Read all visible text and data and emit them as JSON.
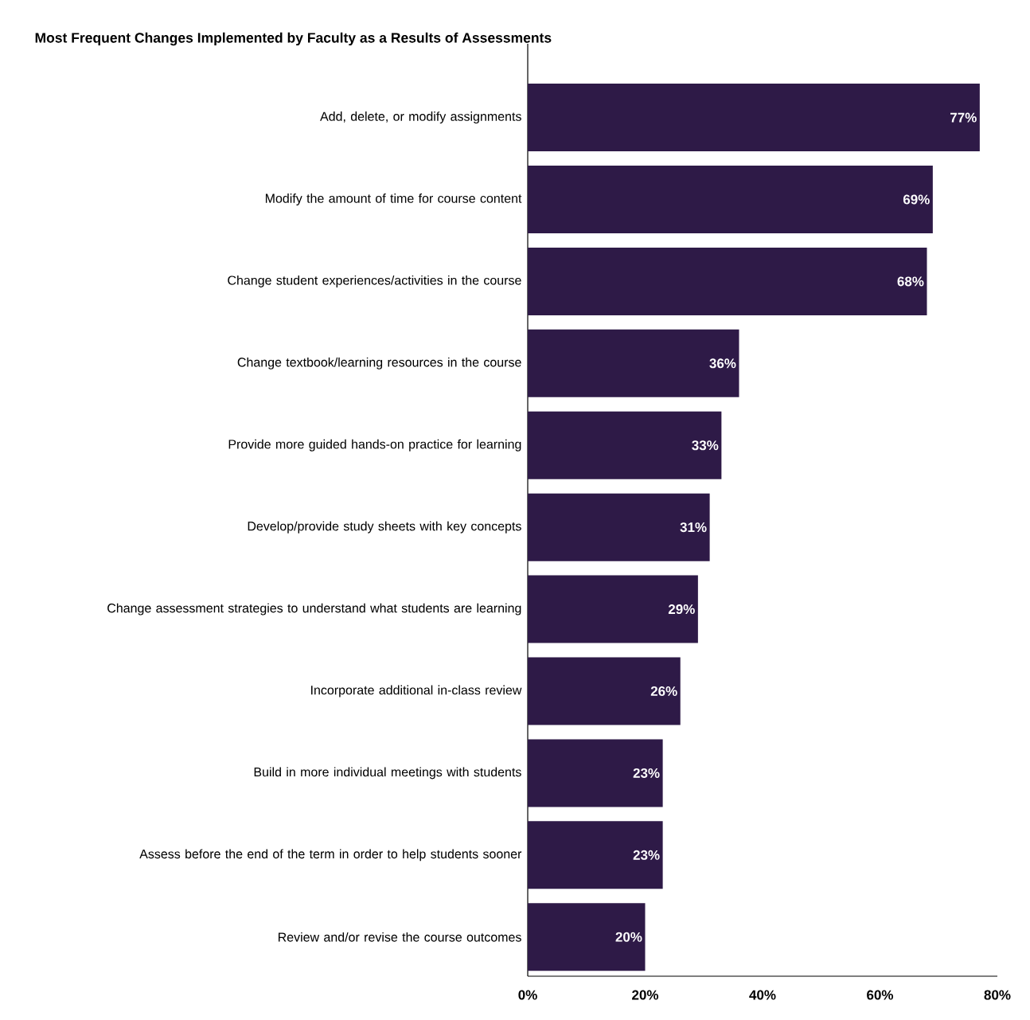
{
  "chart_data": {
    "type": "bar",
    "orientation": "horizontal",
    "title": "Most Frequent Changes Implemented by Faculty as a Results of Assessments",
    "categories": [
      "Add, delete, or modify assignments",
      "Modify the amount of time for course content",
      "Change student experiences/activities in the course",
      "Change textbook/learning resources in the course",
      "Provide more guided hands-on practice for learning",
      "Develop/provide study sheets with key concepts",
      "Change assessment strategies to understand what students are learning",
      "Incorporate additional in-class review",
      "Build in more individual meetings with students",
      "Assess before the end of the term in order to help students sooner",
      "Review and/or revise  the course outcomes"
    ],
    "values": [
      77,
      69,
      68,
      36,
      33,
      31,
      29,
      26,
      23,
      23,
      20
    ],
    "value_labels": [
      "77%",
      "69%",
      "68%",
      "36%",
      "33%",
      "31%",
      "29%",
      "26%",
      "23%",
      "23%",
      "20%"
    ],
    "color": "#2e1a47",
    "xlim": [
      0,
      80
    ],
    "xticks": [
      {
        "value": 0,
        "label": "0%"
      },
      {
        "value": 20,
        "label": "20%"
      },
      {
        "value": 40,
        "label": "40%"
      },
      {
        "value": 60,
        "label": "60%"
      },
      {
        "value": 80,
        "label": "80%"
      }
    ]
  }
}
